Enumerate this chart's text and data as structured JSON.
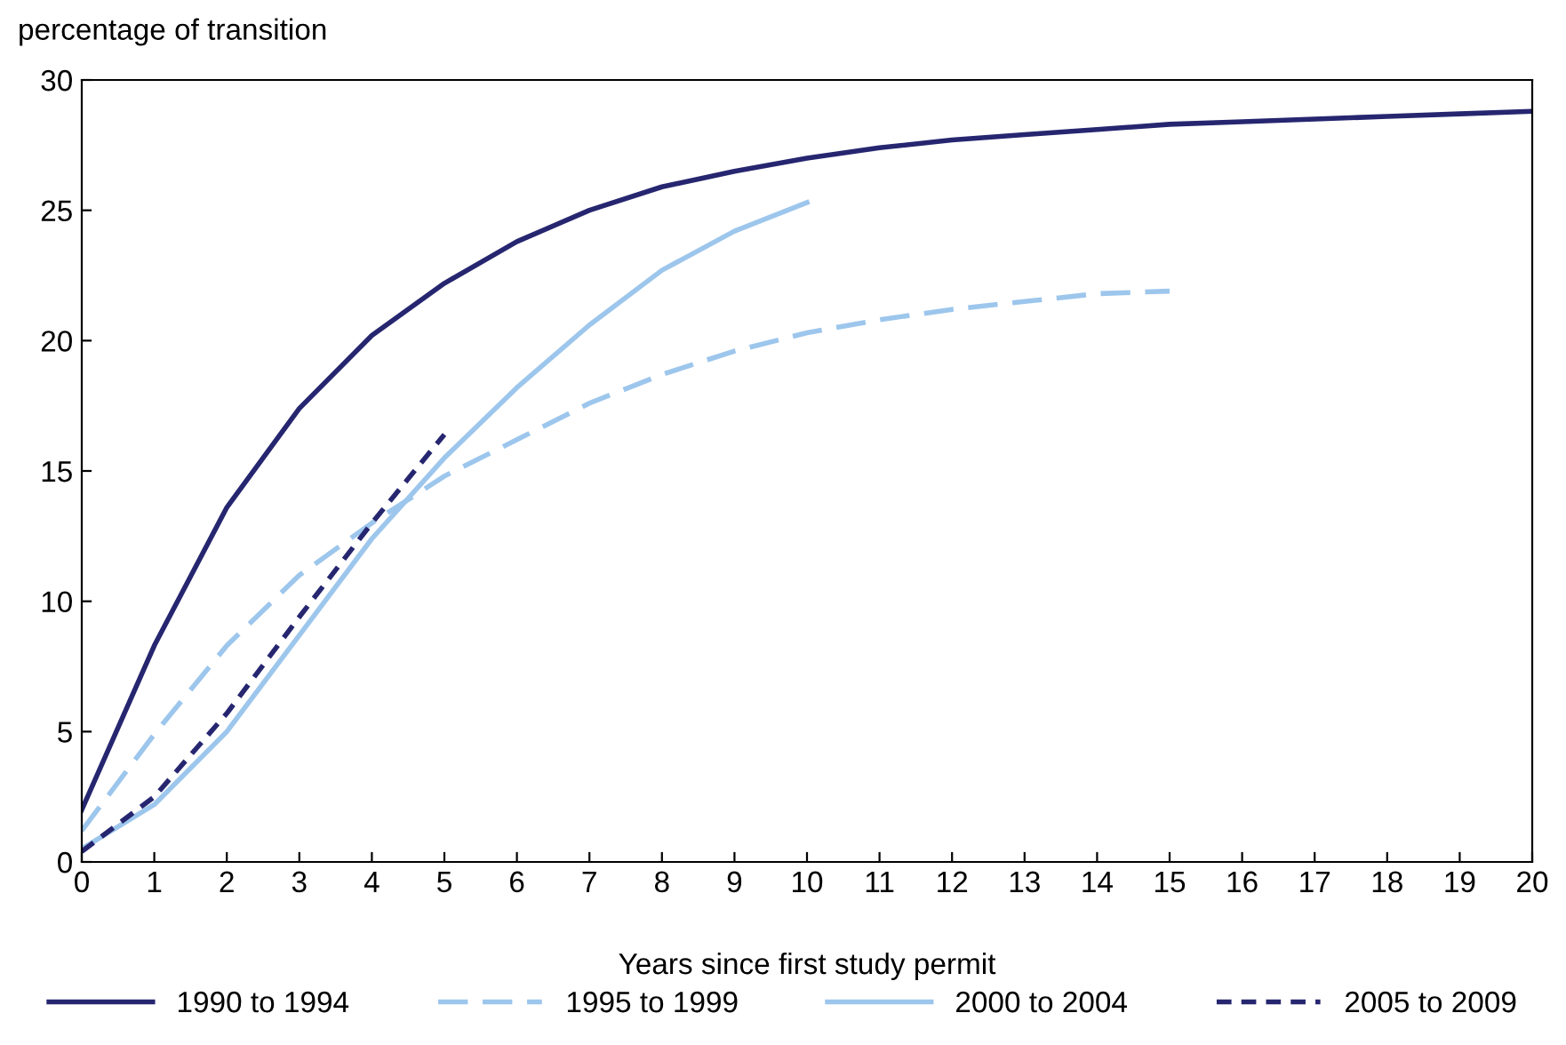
{
  "chart_data": {
    "type": "line",
    "ylabel": "percentage of transition",
    "xlabel": "Years since first study permit",
    "x": [
      0,
      1,
      2,
      3,
      4,
      5,
      6,
      7,
      8,
      9,
      10,
      11,
      12,
      13,
      14,
      15,
      16,
      17,
      18,
      19,
      20
    ],
    "series": [
      {
        "name": "1990 to 1994",
        "color": "#262670",
        "line_style": "solid",
        "values": [
          2.0,
          8.3,
          13.6,
          17.4,
          20.2,
          22.2,
          23.8,
          25.0,
          25.9,
          26.5,
          27.0,
          27.4,
          27.7,
          27.9,
          28.1,
          28.3,
          28.4,
          28.5,
          28.6,
          28.7,
          28.8
        ]
      },
      {
        "name": "1995 to 1999",
        "color": "#9dc6ec",
        "line_style": "dashed",
        "values": [
          1.2,
          4.9,
          8.3,
          11.0,
          13.0,
          14.8,
          16.2,
          17.6,
          18.7,
          19.6,
          20.3,
          20.8,
          21.2,
          21.5,
          21.8,
          21.9,
          null,
          null,
          null,
          null,
          null
        ]
      },
      {
        "name": "2000 to 2004",
        "color": "#9dc6ec",
        "line_style": "solid",
        "values": [
          0.5,
          2.2,
          5.0,
          8.7,
          12.4,
          15.5,
          18.2,
          20.6,
          22.7,
          24.2,
          25.3,
          null,
          null,
          null,
          null,
          null,
          null,
          null,
          null,
          null,
          null
        ]
      },
      {
        "name": "2005 to 2009",
        "color": "#262670",
        "line_style": "dotted",
        "values": [
          0.4,
          2.5,
          5.7,
          9.4,
          13.0,
          16.4,
          null,
          null,
          null,
          null,
          null,
          null,
          null,
          null,
          null,
          null,
          null,
          null,
          null,
          null,
          null
        ]
      }
    ],
    "xlim": [
      0,
      20
    ],
    "xticks": [
      0,
      1,
      2,
      3,
      4,
      5,
      6,
      7,
      8,
      9,
      10,
      11,
      12,
      13,
      14,
      15,
      16,
      17,
      18,
      19,
      20
    ],
    "ylim": [
      0,
      30
    ],
    "yticks": [
      0,
      5,
      10,
      15,
      20,
      25,
      30
    ],
    "grid": false,
    "legend": "bottom",
    "marker": "none"
  }
}
